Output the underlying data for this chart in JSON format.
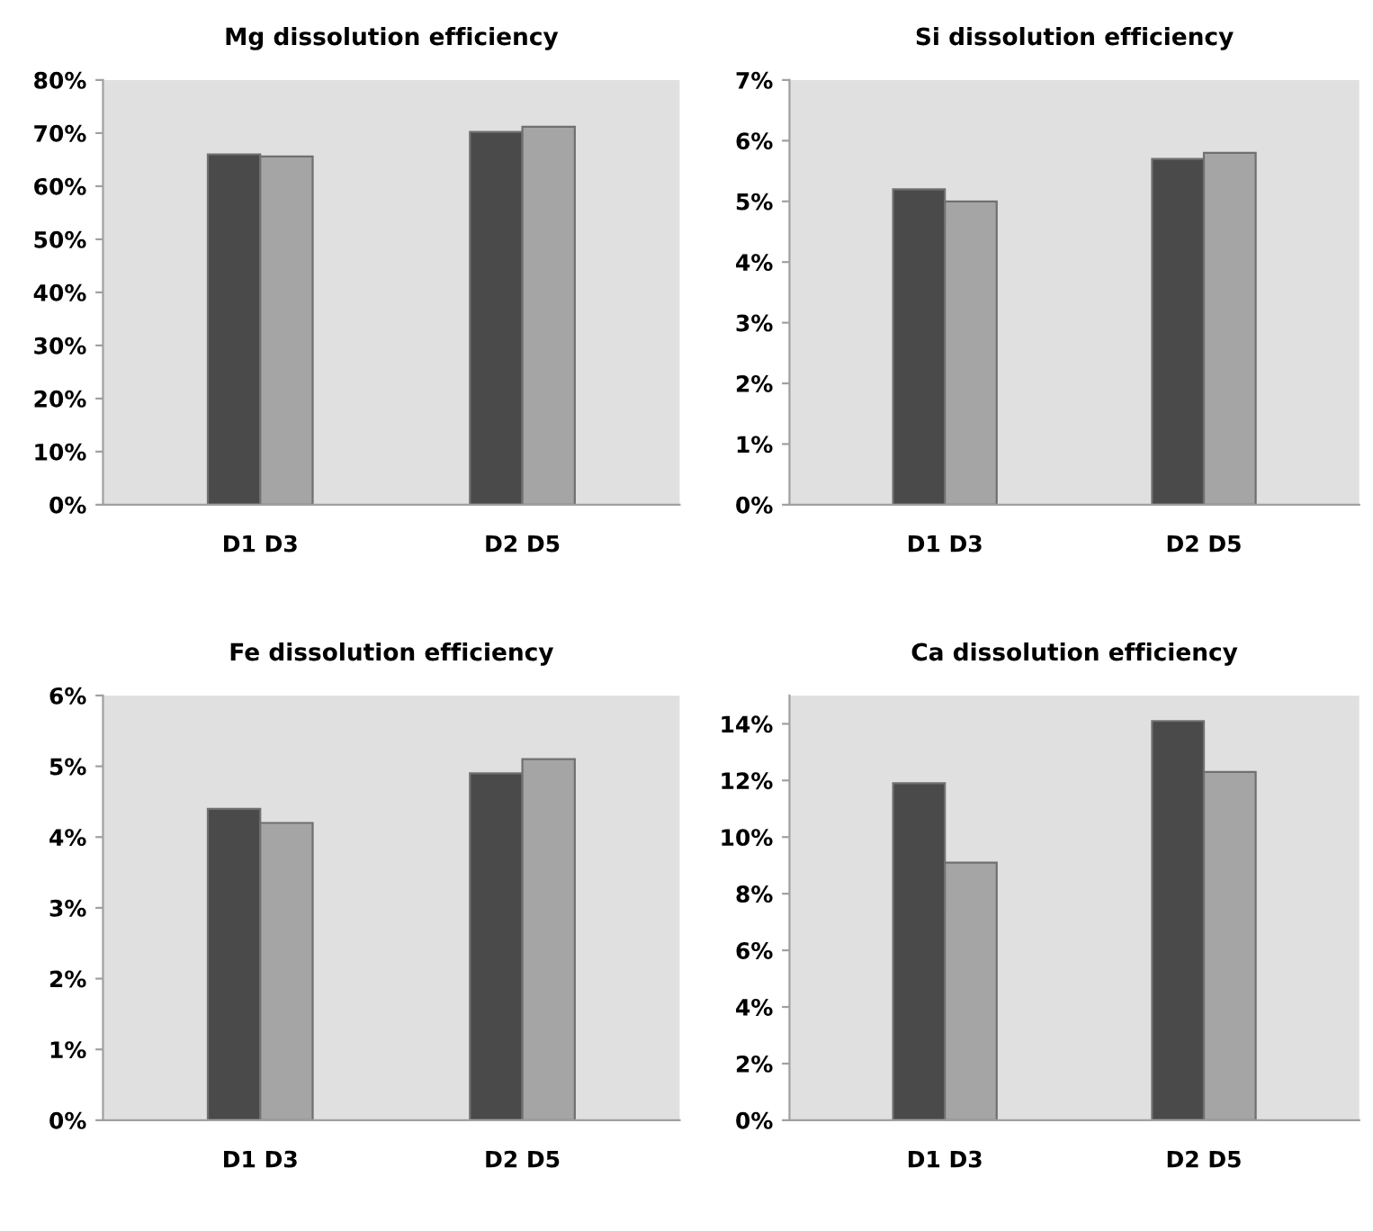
{
  "chart_data": [
    {
      "type": "bar",
      "title": "Mg dissolution efficiency",
      "categories": [
        "D1 D3",
        "D2 D5"
      ],
      "series": [
        {
          "color": "#4a4a4a",
          "values": [
            66,
            70.2
          ]
        },
        {
          "color": "#a5a5a5",
          "values": [
            65.6,
            71.2
          ]
        }
      ],
      "ylim": [
        0,
        80
      ],
      "yticks": [
        {
          "value": 0,
          "label": "0%"
        },
        {
          "value": 10,
          "label": "10%"
        },
        {
          "value": 20,
          "label": "20%"
        },
        {
          "value": 30,
          "label": "30%"
        },
        {
          "value": 40,
          "label": "40%"
        },
        {
          "value": 50,
          "label": "50%"
        },
        {
          "value": 60,
          "label": "60%"
        },
        {
          "value": 70,
          "label": "70%"
        },
        {
          "value": 80,
          "label": "80%"
        }
      ],
      "grid": false
    },
    {
      "type": "bar",
      "title": "Si dissolution efficiency",
      "categories": [
        "D1 D3",
        "D2 D5"
      ],
      "series": [
        {
          "color": "#4a4a4a",
          "values": [
            5.2,
            5.7
          ]
        },
        {
          "color": "#a5a5a5",
          "values": [
            5.0,
            5.8
          ]
        }
      ],
      "ylim": [
        0,
        7
      ],
      "yticks": [
        {
          "value": 0,
          "label": "0%"
        },
        {
          "value": 1,
          "label": "1%"
        },
        {
          "value": 2,
          "label": "2%"
        },
        {
          "value": 3,
          "label": "3%"
        },
        {
          "value": 4,
          "label": "4%"
        },
        {
          "value": 5,
          "label": "5%"
        },
        {
          "value": 6,
          "label": "6%"
        },
        {
          "value": 7,
          "label": "7%"
        }
      ],
      "grid": false
    },
    {
      "type": "bar",
      "title": "Fe dissolution efficiency",
      "categories": [
        "D1 D3",
        "D2 D5"
      ],
      "series": [
        {
          "color": "#4a4a4a",
          "values": [
            4.4,
            4.9
          ]
        },
        {
          "color": "#a5a5a5",
          "values": [
            4.2,
            5.1
          ]
        }
      ],
      "ylim": [
        0,
        6
      ],
      "yticks": [
        {
          "value": 0,
          "label": "0%"
        },
        {
          "value": 1,
          "label": "1%"
        },
        {
          "value": 2,
          "label": "2%"
        },
        {
          "value": 3,
          "label": "3%"
        },
        {
          "value": 4,
          "label": "4%"
        },
        {
          "value": 5,
          "label": "5%"
        },
        {
          "value": 6,
          "label": "6%"
        }
      ],
      "grid": false
    },
    {
      "type": "bar",
      "title": "Ca dissolution efficiency",
      "categories": [
        "D1 D3",
        "D2 D5"
      ],
      "series": [
        {
          "color": "#4a4a4a",
          "values": [
            11.9,
            14.1
          ]
        },
        {
          "color": "#a5a5a5",
          "values": [
            9.1,
            12.3
          ]
        }
      ],
      "ylim": [
        0,
        15
      ],
      "yticks": [
        {
          "value": 0,
          "label": "0%"
        },
        {
          "value": 2,
          "label": "2%"
        },
        {
          "value": 4,
          "label": "4%"
        },
        {
          "value": 6,
          "label": "6%"
        },
        {
          "value": 8,
          "label": "8%"
        },
        {
          "value": 10,
          "label": "10%"
        },
        {
          "value": 12,
          "label": "12%"
        },
        {
          "value": 14,
          "label": "14%"
        }
      ],
      "grid": false
    }
  ]
}
